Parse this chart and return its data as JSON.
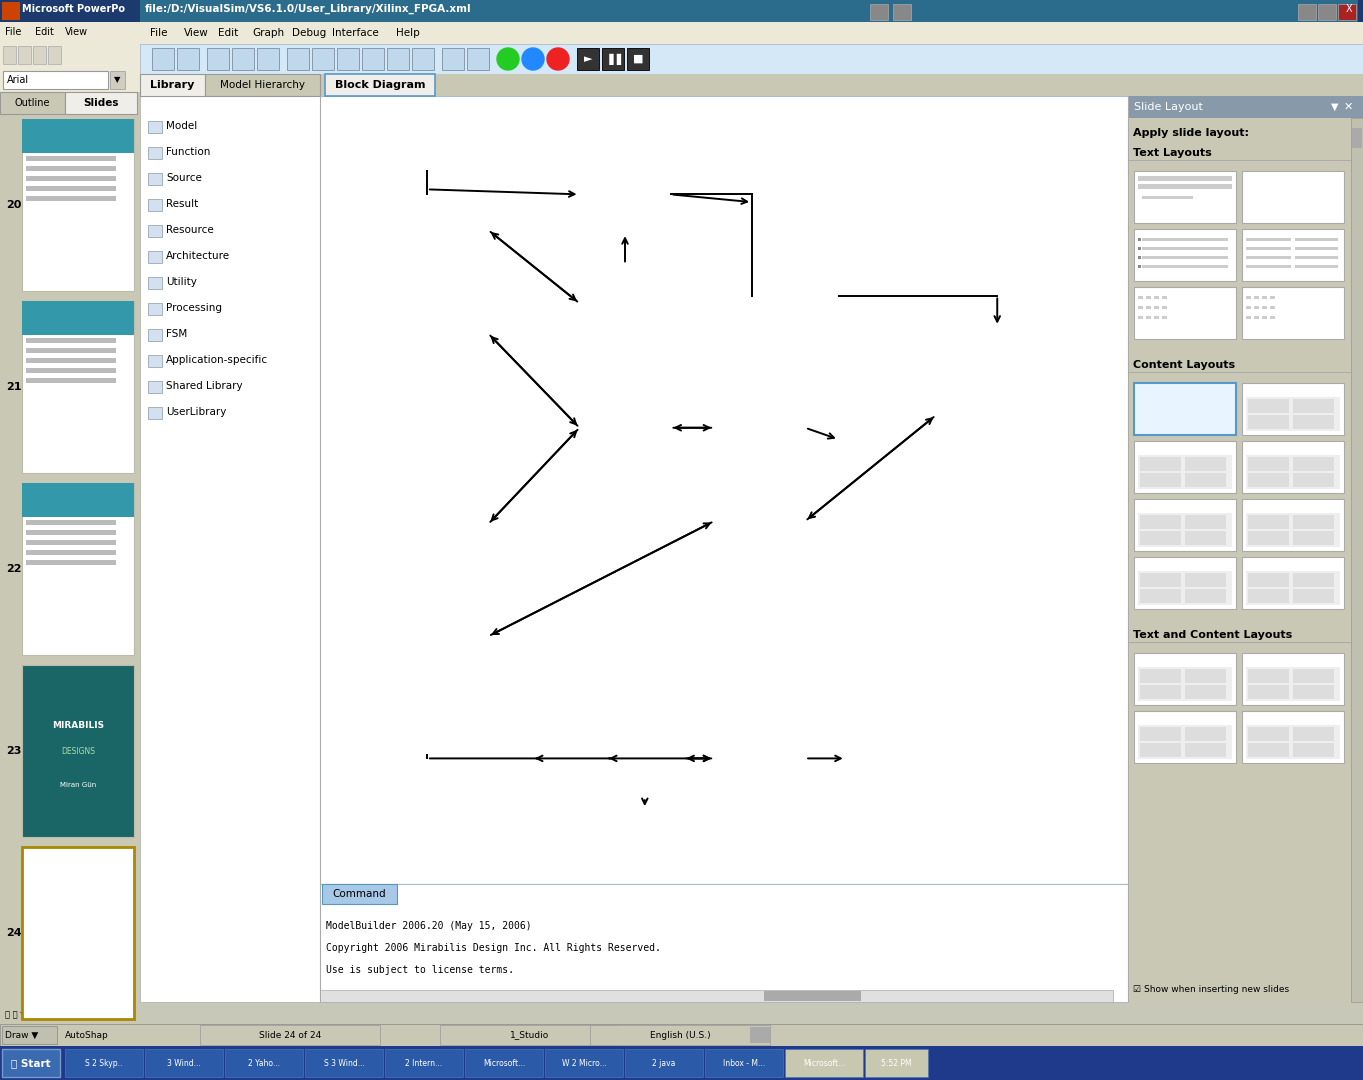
{
  "title_bar_text": "file:/D:/VisualSim/VS6.1.0/User_Library/Xilinx_FPGA.xml",
  "pp_title": "Microsoft PowerPo",
  "menu_vs": [
    "File",
    "View",
    "Edit",
    "Graph",
    "Debug",
    "Interface",
    "Help"
  ],
  "menu_pp": [
    "File",
    "Edit",
    "View"
  ],
  "library_items": [
    "Model",
    "Function",
    "Source",
    "Result",
    "Resource",
    "Architecture",
    "Utility",
    "Processing",
    "FSM",
    "Application-specific",
    "Shared Library",
    "UserLibrary"
  ],
  "command_text": [
    "ModelBuilder 2006.20 (May 15, 2006)",
    "Copyright 2006 Mirabilis Design Inc. All Rights Reserved.",
    "Use is subject to license terms."
  ],
  "slide_layout_title": "Apply slide layout:",
  "text_layouts": "Text Layouts",
  "content_layouts": "Content Layouts",
  "text_content_layouts": "Text and Content Layouts",
  "show_inserting": "Show when inserting new slides",
  "taskbar_items": [
    "S 2 Skyp..",
    "3 Wind...",
    "2 Yaho...",
    "S 3 Wind...",
    "2 Intern...",
    "Microsoft...",
    "W 2 Micro...",
    "2 java",
    "Inbox - M...",
    "Microsoft...",
    "5:52 PM"
  ],
  "status_items": [
    "Slide 24 of 24",
    "1_Studio",
    "English (U.S.)"
  ],
  "pp_bg": "#C8C8B8",
  "vs_titlebar": "#2B6B8B",
  "pp_titlebar": "#2B3A8B",
  "taskbar_bg": "#1F3A8B",
  "toolbar_bg": "#D4E8F8",
  "lib_bg": "#FFFFFF",
  "diag_bg": "#FFFFFF",
  "right_panel_bg": "#C8C8B4",
  "slide_panel_bg": "#C8C8B4",
  "ppc_color": "#9933CC",
  "cop_color": "#9933CC",
  "slave_color": "#9933CC",
  "cyan_block": "#00AADD",
  "yellow_block": "#FFD700",
  "green_block": "#33BB33",
  "blue_dsp": "#3355DD",
  "sub_green": "#33BB33",
  "sub_orange": "#FF8800",
  "sub_red": "#EE2222",
  "sub_yellow": "#FFDD00"
}
